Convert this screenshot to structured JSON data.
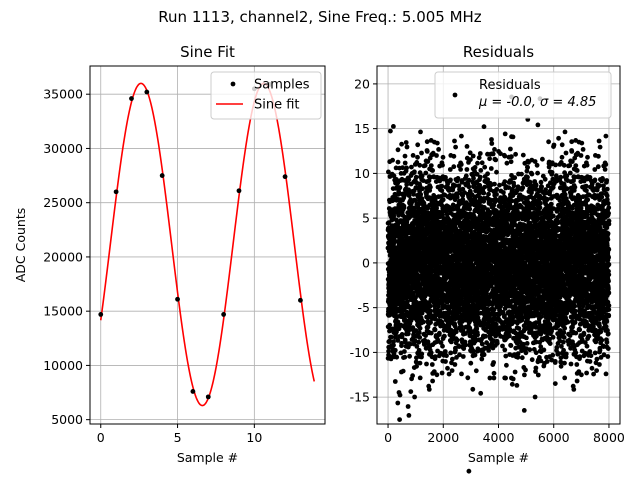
{
  "figure": {
    "suptitle": "Run 1113, channel2, Sine Freq.: 5.005 MHz"
  },
  "chart_data": [
    {
      "type": "line",
      "title": "Sine Fit",
      "xlabel": "Sample #",
      "ylabel": "ADC Counts",
      "xlim": [
        -0.7,
        14.6
      ],
      "ylim": [
        4600,
        37600
      ],
      "xticks": [
        0,
        5,
        10
      ],
      "yticks": [
        5000,
        10000,
        15000,
        20000,
        25000,
        30000,
        35000
      ],
      "grid": true,
      "legend": {
        "position": "top-right",
        "entries": [
          "Samples",
          "Sine fit"
        ]
      },
      "series": [
        {
          "name": "Samples",
          "kind": "scatter",
          "color": "#000000",
          "x": [
            0,
            1,
            2,
            3,
            4,
            5,
            6,
            7,
            8,
            9,
            10,
            11,
            12,
            13
          ],
          "y": [
            14700,
            26000,
            34600,
            35200,
            27500,
            16100,
            7600,
            7100,
            14700,
            26100,
            35500,
            35900,
            27400,
            16000
          ]
        },
        {
          "name": "Sine fit",
          "kind": "line",
          "color": "#ff0000",
          "model": {
            "offset": 21150,
            "amplitude": 14850,
            "period_samples": 7.99,
            "phase_peak_x": 2.62
          },
          "x_range": [
            0,
            13.9
          ]
        }
      ]
    },
    {
      "type": "scatter",
      "title": "Residuals",
      "xlabel": "Sample #",
      "xlim": [
        -400,
        8400
      ],
      "ylim": [
        -18,
        22
      ],
      "xticks": [
        0,
        2000,
        4000,
        6000,
        8000
      ],
      "yticks": [
        -15,
        -10,
        -5,
        0,
        5,
        10,
        15,
        20
      ],
      "grid": true,
      "legend": {
        "position": "top-right",
        "title": "Residuals",
        "stats": "μ = -0.0, σ = 4.85"
      },
      "series": [
        {
          "name": "Residuals",
          "color": "#000000",
          "n_points": 8000,
          "mean": 0.0,
          "std": 4.85,
          "x_range": [
            0,
            8000
          ]
        }
      ]
    }
  ]
}
